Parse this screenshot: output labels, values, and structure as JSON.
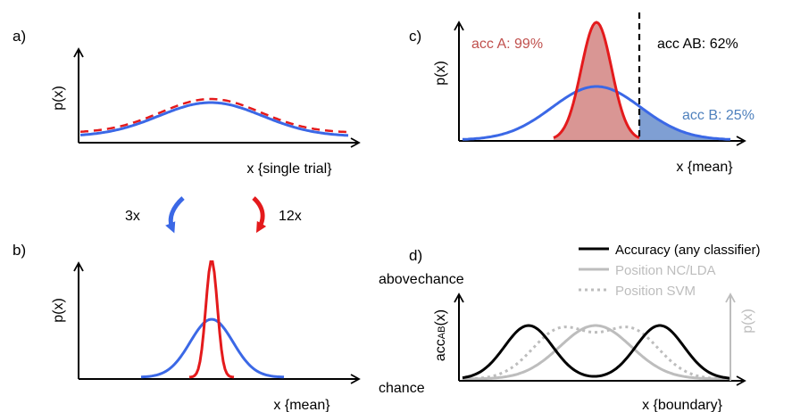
{
  "colors": {
    "red": "#e41a1c",
    "blue": "#3b68e6",
    "black": "#000000",
    "gray": "#bdbdbd",
    "acc_a_text": "#c0504d",
    "acc_b_text": "#4f81bd",
    "red_fill": "#d99694",
    "blue_fill": "#7f9fd3"
  },
  "panel_a": {
    "letter": "a)",
    "ylabel": "p(x)",
    "xlabel": "x {single trial}"
  },
  "arrows": {
    "left_label": "3x",
    "right_label": "12x"
  },
  "panel_b": {
    "letter": "b)",
    "ylabel": "p(x)",
    "xlabel": "x {mean}"
  },
  "panel_c": {
    "letter": "c)",
    "ylabel": "p(x)",
    "xlabel": "x {mean}",
    "acc_a": "acc A: 99%",
    "acc_ab": "acc AB: 62%",
    "acc_b": "acc B: 25%"
  },
  "panel_d": {
    "letter": "d)",
    "ylabel_main": "acc",
    "ylabel_sub": "AB",
    "ylabel_tail": "(x)",
    "ylabel_right": "p(x)",
    "xlabel": "x {boundary}",
    "y_top": "above chance",
    "y_top_a": "above",
    "y_top_b": "chance",
    "y_bottom": "chance",
    "legend": [
      {
        "label": "Accuracy (any classifier)",
        "style": "solid",
        "color": "#000000"
      },
      {
        "label": "Position NC/LDA",
        "style": "solid",
        "color": "#bdbdbd"
      },
      {
        "label": "Position SVM",
        "style": "dotted",
        "color": "#bdbdbd"
      }
    ]
  }
}
